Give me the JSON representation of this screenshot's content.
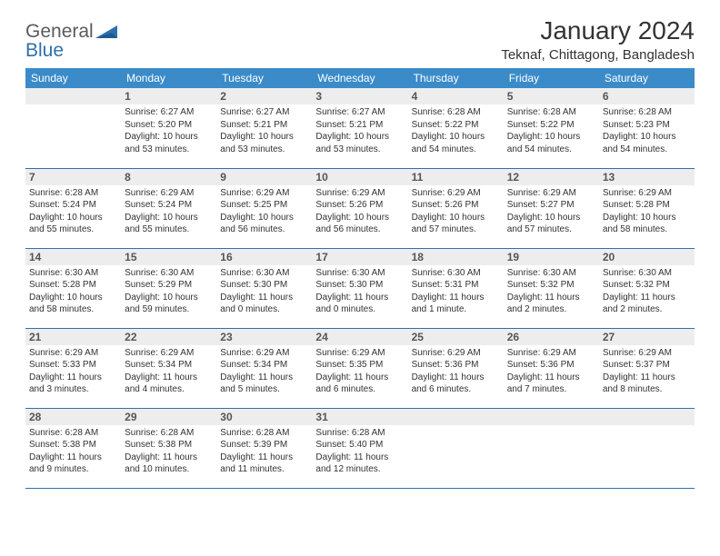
{
  "logo": {
    "general": "General",
    "blue": "Blue"
  },
  "title": "January 2024",
  "location": "Teknaf, Chittagong, Bangladesh",
  "colors": {
    "header_bg": "#3b8bc9",
    "row_border": "#2f6fad",
    "daynum_bg": "#ededed",
    "text": "#333333",
    "logo_gray": "#5a5a5a",
    "logo_blue": "#2f6fad"
  },
  "weekdays": [
    "Sunday",
    "Monday",
    "Tuesday",
    "Wednesday",
    "Thursday",
    "Friday",
    "Saturday"
  ],
  "layout": {
    "columns": 7,
    "rows": 5,
    "start_offset": 1,
    "days_in_month": 31
  },
  "days": [
    {
      "n": 1,
      "sunrise": "6:27 AM",
      "sunset": "5:20 PM",
      "daylight": "10 hours and 53 minutes."
    },
    {
      "n": 2,
      "sunrise": "6:27 AM",
      "sunset": "5:21 PM",
      "daylight": "10 hours and 53 minutes."
    },
    {
      "n": 3,
      "sunrise": "6:27 AM",
      "sunset": "5:21 PM",
      "daylight": "10 hours and 53 minutes."
    },
    {
      "n": 4,
      "sunrise": "6:28 AM",
      "sunset": "5:22 PM",
      "daylight": "10 hours and 54 minutes."
    },
    {
      "n": 5,
      "sunrise": "6:28 AM",
      "sunset": "5:22 PM",
      "daylight": "10 hours and 54 minutes."
    },
    {
      "n": 6,
      "sunrise": "6:28 AM",
      "sunset": "5:23 PM",
      "daylight": "10 hours and 54 minutes."
    },
    {
      "n": 7,
      "sunrise": "6:28 AM",
      "sunset": "5:24 PM",
      "daylight": "10 hours and 55 minutes."
    },
    {
      "n": 8,
      "sunrise": "6:29 AM",
      "sunset": "5:24 PM",
      "daylight": "10 hours and 55 minutes."
    },
    {
      "n": 9,
      "sunrise": "6:29 AM",
      "sunset": "5:25 PM",
      "daylight": "10 hours and 56 minutes."
    },
    {
      "n": 10,
      "sunrise": "6:29 AM",
      "sunset": "5:26 PM",
      "daylight": "10 hours and 56 minutes."
    },
    {
      "n": 11,
      "sunrise": "6:29 AM",
      "sunset": "5:26 PM",
      "daylight": "10 hours and 57 minutes."
    },
    {
      "n": 12,
      "sunrise": "6:29 AM",
      "sunset": "5:27 PM",
      "daylight": "10 hours and 57 minutes."
    },
    {
      "n": 13,
      "sunrise": "6:29 AM",
      "sunset": "5:28 PM",
      "daylight": "10 hours and 58 minutes."
    },
    {
      "n": 14,
      "sunrise": "6:30 AM",
      "sunset": "5:28 PM",
      "daylight": "10 hours and 58 minutes."
    },
    {
      "n": 15,
      "sunrise": "6:30 AM",
      "sunset": "5:29 PM",
      "daylight": "10 hours and 59 minutes."
    },
    {
      "n": 16,
      "sunrise": "6:30 AM",
      "sunset": "5:30 PM",
      "daylight": "11 hours and 0 minutes."
    },
    {
      "n": 17,
      "sunrise": "6:30 AM",
      "sunset": "5:30 PM",
      "daylight": "11 hours and 0 minutes."
    },
    {
      "n": 18,
      "sunrise": "6:30 AM",
      "sunset": "5:31 PM",
      "daylight": "11 hours and 1 minute."
    },
    {
      "n": 19,
      "sunrise": "6:30 AM",
      "sunset": "5:32 PM",
      "daylight": "11 hours and 2 minutes."
    },
    {
      "n": 20,
      "sunrise": "6:30 AM",
      "sunset": "5:32 PM",
      "daylight": "11 hours and 2 minutes."
    },
    {
      "n": 21,
      "sunrise": "6:29 AM",
      "sunset": "5:33 PM",
      "daylight": "11 hours and 3 minutes."
    },
    {
      "n": 22,
      "sunrise": "6:29 AM",
      "sunset": "5:34 PM",
      "daylight": "11 hours and 4 minutes."
    },
    {
      "n": 23,
      "sunrise": "6:29 AM",
      "sunset": "5:34 PM",
      "daylight": "11 hours and 5 minutes."
    },
    {
      "n": 24,
      "sunrise": "6:29 AM",
      "sunset": "5:35 PM",
      "daylight": "11 hours and 6 minutes."
    },
    {
      "n": 25,
      "sunrise": "6:29 AM",
      "sunset": "5:36 PM",
      "daylight": "11 hours and 6 minutes."
    },
    {
      "n": 26,
      "sunrise": "6:29 AM",
      "sunset": "5:36 PM",
      "daylight": "11 hours and 7 minutes."
    },
    {
      "n": 27,
      "sunrise": "6:29 AM",
      "sunset": "5:37 PM",
      "daylight": "11 hours and 8 minutes."
    },
    {
      "n": 28,
      "sunrise": "6:28 AM",
      "sunset": "5:38 PM",
      "daylight": "11 hours and 9 minutes."
    },
    {
      "n": 29,
      "sunrise": "6:28 AM",
      "sunset": "5:38 PM",
      "daylight": "11 hours and 10 minutes."
    },
    {
      "n": 30,
      "sunrise": "6:28 AM",
      "sunset": "5:39 PM",
      "daylight": "11 hours and 11 minutes."
    },
    {
      "n": 31,
      "sunrise": "6:28 AM",
      "sunset": "5:40 PM",
      "daylight": "11 hours and 12 minutes."
    }
  ],
  "labels": {
    "sunrise": "Sunrise:",
    "sunset": "Sunset:",
    "daylight": "Daylight:"
  }
}
